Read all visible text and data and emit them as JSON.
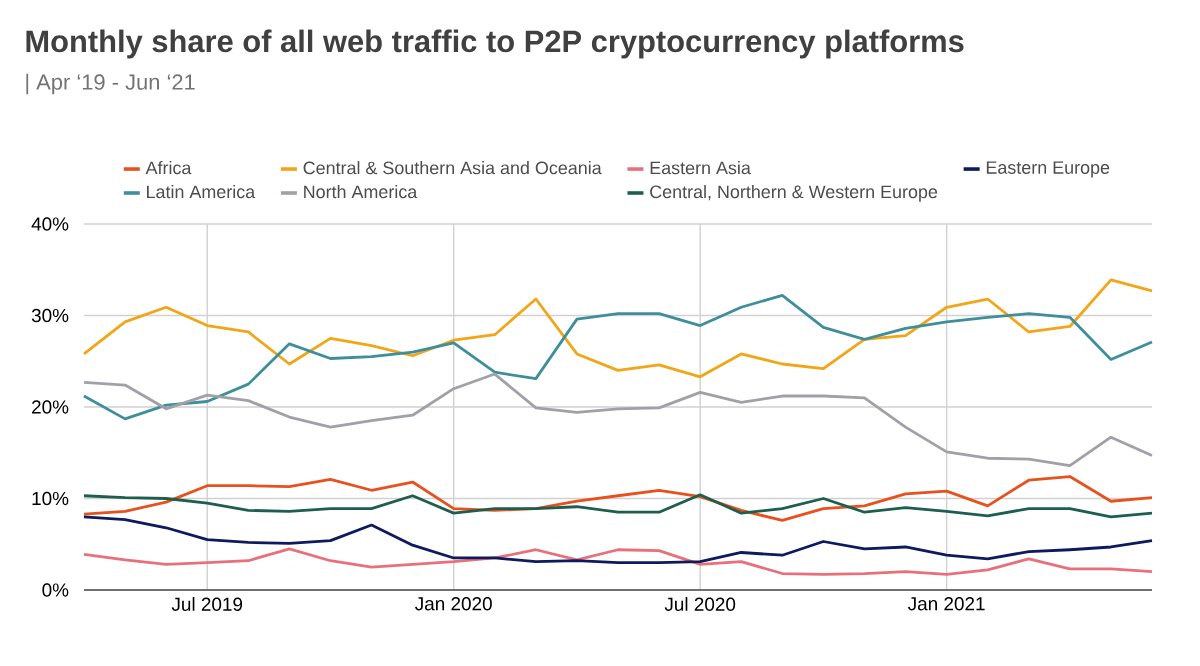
{
  "chart_data": {
    "type": "line",
    "title": "Monthly share of all web traffic to P2P cryptocurrency platforms",
    "subtitle": "| Apr ‘19 - Jun ‘21",
    "x": [
      "2019-04",
      "2019-05",
      "2019-06",
      "2019-07",
      "2019-08",
      "2019-09",
      "2019-10",
      "2019-11",
      "2019-12",
      "2020-01",
      "2020-02",
      "2020-03",
      "2020-04",
      "2020-05",
      "2020-06",
      "2020-07",
      "2020-08",
      "2020-09",
      "2020-10",
      "2020-11",
      "2020-12",
      "2021-01",
      "2021-02",
      "2021-03",
      "2021-04",
      "2021-05",
      "2021-06"
    ],
    "series": [
      {
        "name": "Africa",
        "color": "#e8501d",
        "values": [
          8.3,
          8.6,
          9.6,
          11.4,
          11.4,
          11.3,
          12.1,
          10.9,
          11.8,
          8.9,
          8.7,
          8.9,
          9.7,
          10.3,
          10.9,
          10.2,
          8.7,
          7.6,
          8.9,
          9.2,
          10.5,
          10.8,
          9.2,
          12.0,
          12.4,
          9.7,
          10.1
        ]
      },
      {
        "name": "Central & Southern Asia and Oceania",
        "color": "#f2a516",
        "values": [
          25.8,
          29.3,
          30.9,
          28.9,
          28.2,
          24.7,
          27.5,
          26.7,
          25.6,
          27.3,
          27.9,
          31.8,
          25.8,
          24.0,
          24.6,
          23.3,
          25.8,
          24.7,
          24.2,
          27.4,
          27.8,
          30.9,
          31.8,
          28.2,
          28.8,
          33.9,
          32.7
        ]
      },
      {
        "name": "Eastern Asia",
        "color": "#e8707a",
        "values": [
          3.9,
          3.3,
          2.8,
          3.0,
          3.2,
          4.5,
          3.2,
          2.5,
          2.8,
          3.1,
          3.5,
          4.4,
          3.3,
          4.4,
          4.3,
          2.8,
          3.1,
          1.8,
          1.7,
          1.8,
          2.0,
          1.7,
          2.2,
          3.4,
          2.3,
          2.3,
          2.0
        ]
      },
      {
        "name": "Eastern Europe",
        "color": "#0d1a5e",
        "values": [
          8.0,
          7.7,
          6.8,
          5.5,
          5.2,
          5.1,
          5.4,
          7.1,
          4.9,
          3.5,
          3.5,
          3.1,
          3.2,
          3.0,
          3.0,
          3.1,
          4.1,
          3.8,
          5.3,
          4.5,
          4.7,
          3.8,
          3.4,
          4.2,
          4.4,
          4.7,
          5.4
        ]
      },
      {
        "name": "Latin America",
        "color": "#3e8e9c",
        "values": [
          21.2,
          18.7,
          20.2,
          20.6,
          22.5,
          26.9,
          25.3,
          25.5,
          26.0,
          27.0,
          23.8,
          23.1,
          29.6,
          30.2,
          30.2,
          28.9,
          30.9,
          32.2,
          28.7,
          27.4,
          28.6,
          29.3,
          29.8,
          30.2,
          29.8,
          25.2,
          27.1
        ]
      },
      {
        "name": "North America",
        "color": "#a0a0a8",
        "values": [
          22.7,
          22.4,
          19.8,
          21.3,
          20.7,
          18.9,
          17.8,
          18.5,
          19.1,
          22.0,
          23.6,
          19.9,
          19.4,
          19.8,
          19.9,
          21.6,
          20.5,
          21.2,
          21.2,
          21.0,
          17.8,
          15.1,
          14.4,
          14.3,
          13.6,
          16.7,
          14.7
        ]
      },
      {
        "name": "Central, Northern & Western Europe",
        "color": "#1e5e4e",
        "values": [
          10.3,
          10.1,
          10.0,
          9.5,
          8.7,
          8.6,
          8.9,
          8.9,
          10.3,
          8.4,
          8.9,
          8.9,
          9.1,
          8.5,
          8.5,
          10.4,
          8.4,
          8.9,
          10.0,
          8.5,
          9.0,
          8.6,
          8.1,
          8.9,
          8.9,
          8.0,
          8.4
        ]
      }
    ],
    "xlim": [
      "2019-04",
      "2021-06"
    ],
    "xticks": [
      {
        "value": "2019-07",
        "label": "Jul 2019"
      },
      {
        "value": "2020-01",
        "label": "Jan 2020"
      },
      {
        "value": "2020-07",
        "label": "Jul 2020"
      },
      {
        "value": "2021-01",
        "label": "Jan 2021"
      }
    ],
    "ylim": [
      0,
      40
    ],
    "yticks": [
      {
        "value": 0,
        "label": "0%"
      },
      {
        "value": 10,
        "label": "10%"
      },
      {
        "value": 20,
        "label": "20%"
      },
      {
        "value": 30,
        "label": "30%"
      },
      {
        "value": 40,
        "label": "40%"
      }
    ],
    "grid": true,
    "legend": "top",
    "line_style": "solid"
  }
}
